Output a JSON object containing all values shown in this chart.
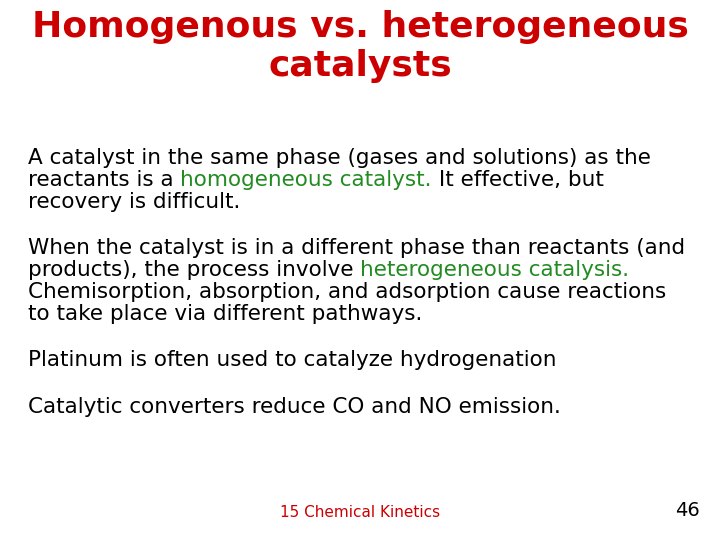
{
  "title_line1": "Homogenous vs. heterogeneous",
  "title_line2": "catalysts",
  "title_color": "#CC0000",
  "background_color": "#FFFFFF",
  "green_color": "#228B22",
  "black_color": "#000000",
  "footer_text": "15 Chemical Kinetics",
  "footer_color": "#CC0000",
  "page_number": "46",
  "body_fontsize": 15.5,
  "title_fontsize": 26,
  "footer_fontsize": 11,
  "page_number_fontsize": 14
}
